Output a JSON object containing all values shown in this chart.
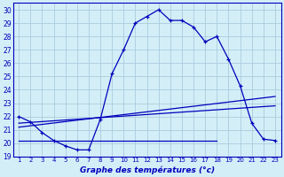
{
  "title": "Graphe des températures (°c)",
  "background_color": "#d4eef8",
  "grid_color": "#aaccdd",
  "line_color": "#0000bb",
  "xlim": [
    0.5,
    23.5
  ],
  "ylim": [
    19,
    30.5
  ],
  "yticks": [
    19,
    20,
    21,
    22,
    23,
    24,
    25,
    26,
    27,
    28,
    29,
    30
  ],
  "xticks": [
    1,
    2,
    3,
    4,
    5,
    6,
    7,
    8,
    9,
    10,
    11,
    12,
    13,
    14,
    15,
    16,
    17,
    18,
    19,
    20,
    21,
    22,
    23
  ],
  "curve1_x": [
    1,
    2,
    3,
    4,
    5,
    6,
    7,
    8,
    9,
    10,
    11,
    12,
    13,
    14,
    15,
    16,
    17,
    18,
    19,
    20,
    21,
    22,
    23
  ],
  "curve1_y": [
    22.0,
    21.6,
    20.8,
    20.2,
    19.8,
    19.5,
    19.5,
    21.8,
    25.2,
    27.0,
    29.0,
    29.5,
    30.0,
    29.2,
    29.2,
    28.7,
    27.6,
    28.0,
    26.3,
    24.3,
    21.5,
    20.3,
    20.2
  ],
  "curve2_x": [
    1,
    18
  ],
  "curve2_y": [
    20.2,
    20.2
  ],
  "curve3_x": [
    1,
    23
  ],
  "curve3_y": [
    21.2,
    23.5
  ],
  "curve4_x": [
    1,
    23
  ],
  "curve4_y": [
    21.5,
    22.8
  ]
}
